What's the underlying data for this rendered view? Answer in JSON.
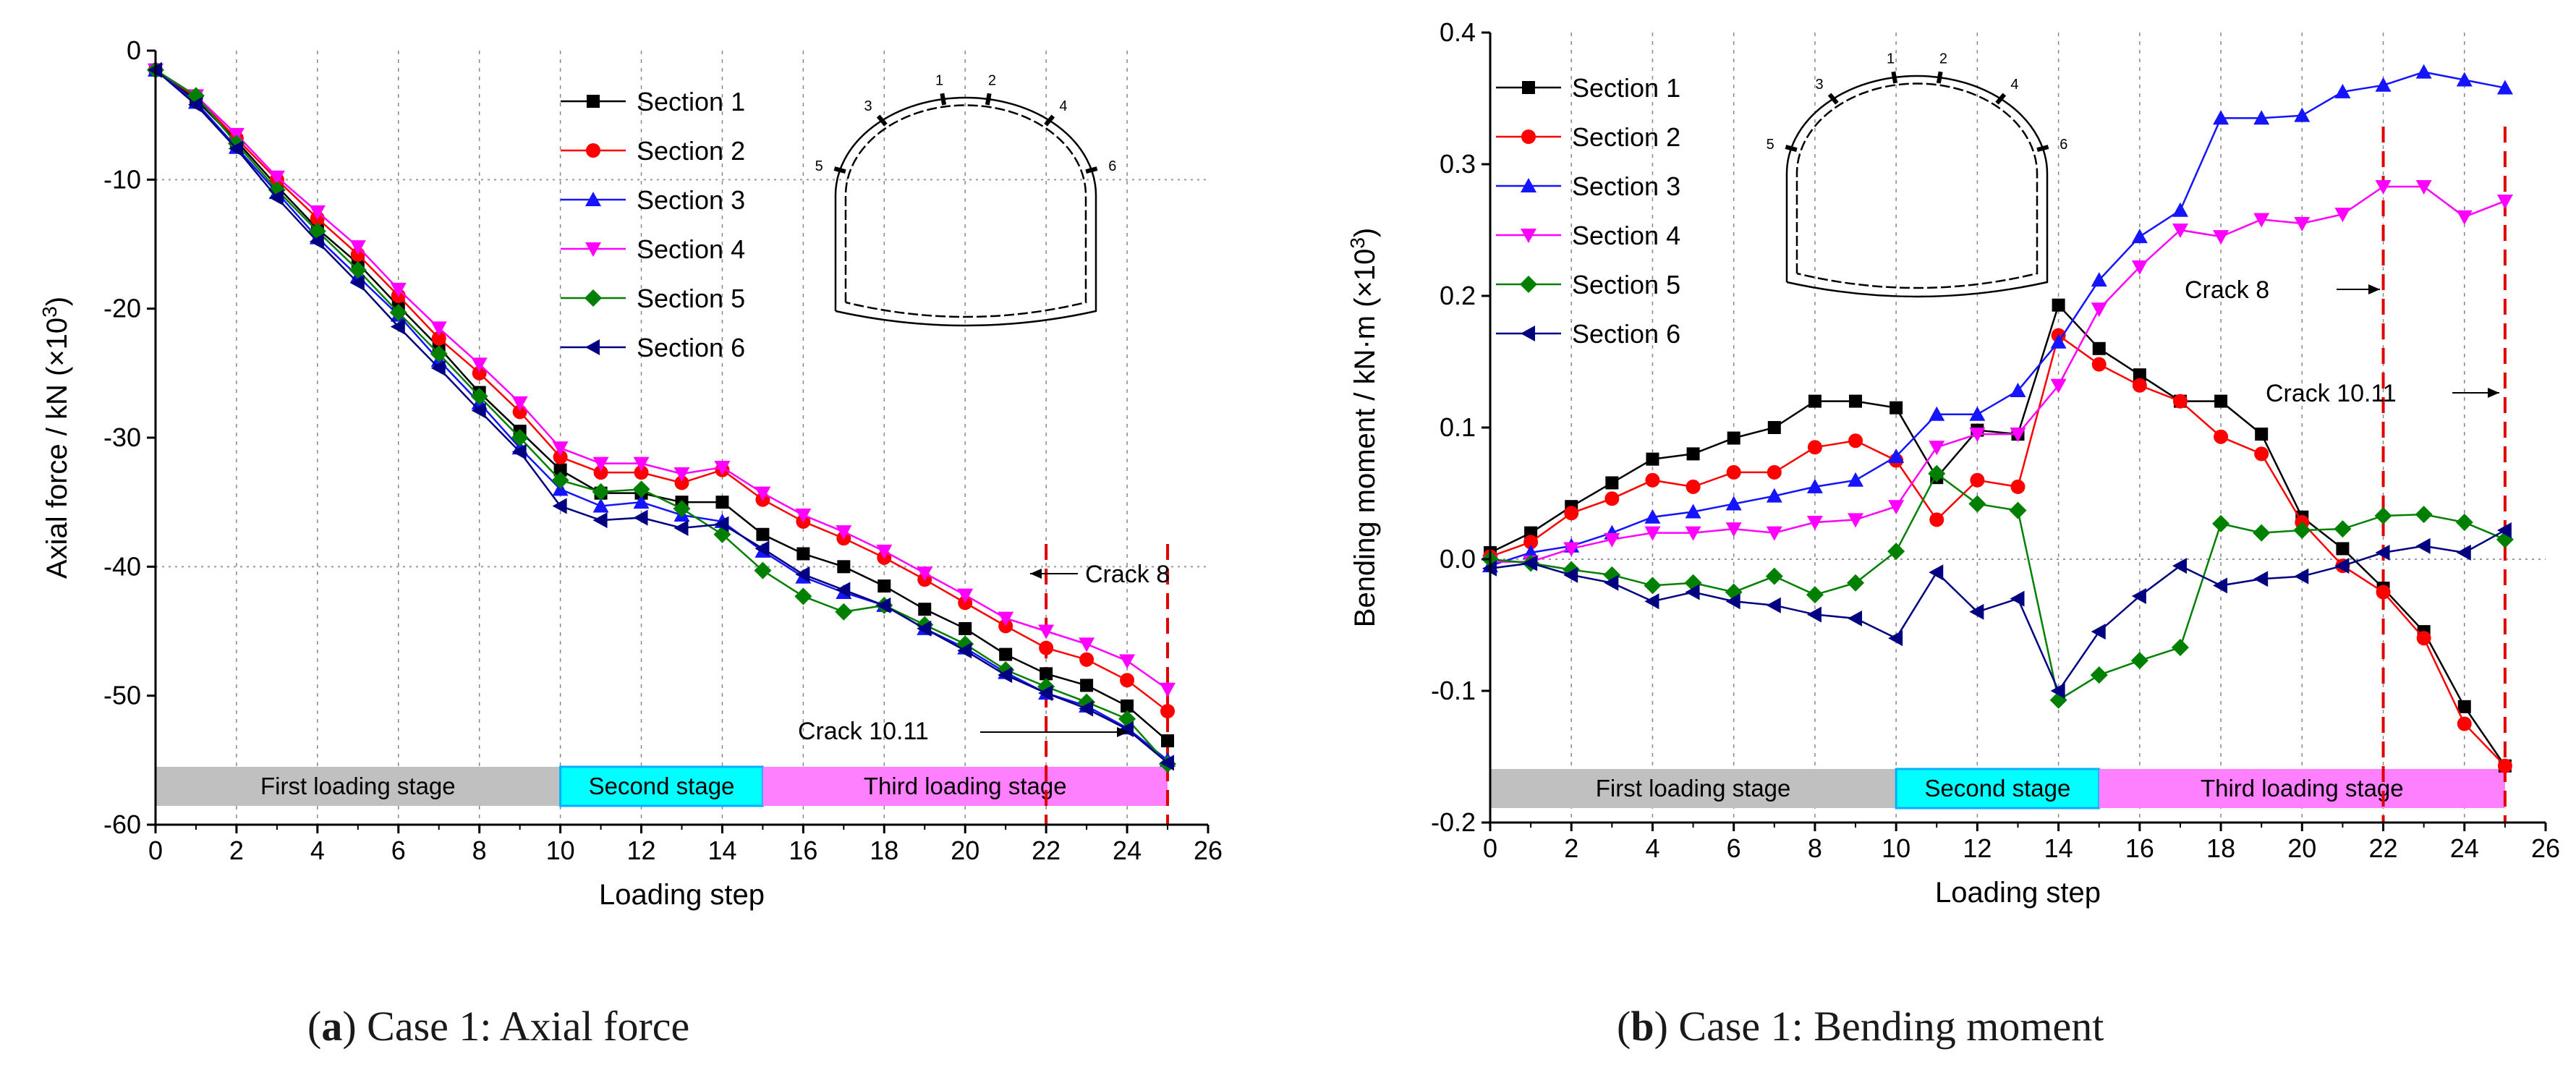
{
  "captions": {
    "a_prefix": "(",
    "a_letter": "a",
    "a_text": ") Case 1: Axial force",
    "b_prefix": "(",
    "b_letter": "b",
    "b_text": ") Case 1: Bending moment"
  },
  "chart_data": [
    {
      "type": "line",
      "title": "",
      "xlabel": "Loading step",
      "ylabel": "Axial force / kN (×10³)",
      "ylabel_base": "Axial force / kN (×10",
      "ylabel_sup": "3",
      "ylabel_end": ")",
      "xlim": [
        0,
        26
      ],
      "ylim": [
        -60,
        0
      ],
      "xticks": [
        0,
        2,
        4,
        6,
        8,
        10,
        12,
        14,
        16,
        18,
        20,
        22,
        24,
        26
      ],
      "yticks": [
        0,
        -10,
        -20,
        -30,
        -40,
        -50,
        -60
      ],
      "grid": "vertical dashed at even steps, horizontal dotted at -10 and -40",
      "legend": "top-center",
      "x": [
        0,
        1,
        2,
        3,
        4,
        5,
        6,
        7,
        8,
        9,
        10,
        11,
        12,
        13,
        14,
        15,
        16,
        17,
        18,
        19,
        20,
        21,
        22,
        23,
        24,
        25
      ],
      "series": [
        {
          "name": "Section 1",
          "color": "#000000",
          "marker": "square",
          "values": [
            -1.5,
            -3.8,
            -7.0,
            -10.5,
            -13.8,
            -16.5,
            -19.8,
            -23.0,
            -26.5,
            -29.5,
            -32.5,
            -34.3,
            -34.3,
            -35.0,
            -35.0,
            -37.5,
            -39.0,
            -40.0,
            -41.5,
            -43.3,
            -44.8,
            -46.8,
            -48.3,
            -49.2,
            -50.8,
            -53.5
          ]
        },
        {
          "name": "Section 2",
          "color": "#ff0000",
          "marker": "circle",
          "values": [
            -1.5,
            -3.6,
            -6.8,
            -10.0,
            -13.0,
            -15.8,
            -19.0,
            -22.3,
            -25.0,
            -28.0,
            -31.5,
            -32.7,
            -32.7,
            -33.5,
            -32.5,
            -34.8,
            -36.5,
            -37.8,
            -39.3,
            -41.0,
            -42.8,
            -44.6,
            -46.3,
            -47.2,
            -48.8,
            -51.2
          ]
        },
        {
          "name": "Section 3",
          "color": "#1414ff",
          "marker": "triangle-up",
          "values": [
            -1.5,
            -4.0,
            -7.5,
            -11.0,
            -14.5,
            -17.5,
            -20.5,
            -24.0,
            -27.3,
            -30.8,
            -34.0,
            -35.3,
            -35.0,
            -36.0,
            -36.5,
            -38.8,
            -40.8,
            -42.0,
            -43.0,
            -44.8,
            -46.3,
            -48.2,
            -49.8,
            -50.8,
            -52.5,
            -55.0
          ]
        },
        {
          "name": "Section 4",
          "color": "#ff00ff",
          "marker": "triangle-down",
          "values": [
            -1.5,
            -3.5,
            -6.5,
            -9.8,
            -12.5,
            -15.2,
            -18.5,
            -21.5,
            -24.3,
            -27.3,
            -30.8,
            -32.0,
            -32.0,
            -32.8,
            -32.3,
            -34.3,
            -36.0,
            -37.3,
            -38.8,
            -40.5,
            -42.2,
            -44.0,
            -45.0,
            -46.0,
            -47.3,
            -49.5
          ]
        },
        {
          "name": "Section 5",
          "color": "#008000",
          "marker": "diamond",
          "values": [
            -1.5,
            -3.5,
            -7.2,
            -10.8,
            -14.0,
            -17.0,
            -20.3,
            -23.5,
            -26.8,
            -30.0,
            -33.3,
            -34.2,
            -34.0,
            -35.5,
            -37.5,
            -40.3,
            -42.3,
            -43.5,
            -43.0,
            -44.5,
            -46.0,
            -48.0,
            -49.3,
            -50.5,
            -51.8,
            -55.3
          ]
        },
        {
          "name": "Section 6",
          "color": "#000080",
          "marker": "triangle-left",
          "values": [
            -1.5,
            -4.2,
            -7.6,
            -11.4,
            -14.8,
            -18.0,
            -21.4,
            -24.6,
            -27.9,
            -31.1,
            -35.3,
            -36.4,
            -36.2,
            -37.0,
            -36.7,
            -38.6,
            -40.6,
            -41.8,
            -43.0,
            -44.8,
            -46.5,
            -48.4,
            -49.8,
            -51.0,
            -52.6,
            -55.2
          ]
        }
      ],
      "crack_lines_x": [
        22,
        25
      ],
      "annotations": [
        "Crack 8",
        "Crack 10.11"
      ],
      "stages": [
        {
          "label": "First loading stage",
          "from": 0,
          "to": 10,
          "color": "#c0c0c0"
        },
        {
          "label": "Second stage",
          "from": 10,
          "to": 15,
          "color": "#00ffff"
        },
        {
          "label": "Third loading stage",
          "from": 15,
          "to": 25,
          "color": "#ff80ff"
        }
      ],
      "inset_numbers": [
        "1",
        "2",
        "3",
        "4",
        "5",
        "6"
      ]
    },
    {
      "type": "line",
      "title": "",
      "xlabel": "Loading step",
      "ylabel": "Bending moment / kN·m (×10³)",
      "ylabel_base": "Bending moment / kN·m (×10",
      "ylabel_sup": "3",
      "ylabel_end": ")",
      "xlim": [
        0,
        26
      ],
      "ylim": [
        -0.2,
        0.4
      ],
      "xticks": [
        0,
        2,
        4,
        6,
        8,
        10,
        12,
        14,
        16,
        18,
        20,
        22,
        24,
        26
      ],
      "yticks": [
        -0.2,
        -0.1,
        0.0,
        0.1,
        0.2,
        0.3,
        0.4
      ],
      "ytick_labels": [
        "-0.2",
        "-0.1",
        "0.0",
        "0.1",
        "0.2",
        "0.3",
        "0.4"
      ],
      "grid": "vertical dashed at even steps, horizontal dotted at 0.0",
      "legend": "top-left",
      "x": [
        0,
        1,
        2,
        3,
        4,
        5,
        6,
        7,
        8,
        9,
        10,
        11,
        12,
        13,
        14,
        15,
        16,
        17,
        18,
        19,
        20,
        21,
        22,
        23,
        24,
        25
      ],
      "series": [
        {
          "name": "Section 1",
          "color": "#000000",
          "marker": "square",
          "values": [
            0.005,
            0.02,
            0.04,
            0.058,
            0.076,
            0.08,
            0.092,
            0.1,
            0.12,
            0.12,
            0.115,
            0.062,
            0.098,
            0.095,
            0.193,
            0.16,
            0.14,
            0.12,
            0.12,
            0.095,
            0.032,
            0.008,
            -0.022,
            -0.055,
            -0.112,
            -0.157
          ]
        },
        {
          "name": "Section 2",
          "color": "#ff0000",
          "marker": "circle",
          "values": [
            0.002,
            0.013,
            0.035,
            0.046,
            0.06,
            0.055,
            0.066,
            0.066,
            0.085,
            0.09,
            0.075,
            0.03,
            0.06,
            0.055,
            0.17,
            0.148,
            0.132,
            0.12,
            0.093,
            0.08,
            0.028,
            -0.005,
            -0.025,
            -0.06,
            -0.125,
            -0.157
          ]
        },
        {
          "name": "Section 3",
          "color": "#1414ff",
          "marker": "triangle-up",
          "values": [
            -0.005,
            0.005,
            0.01,
            0.02,
            0.032,
            0.036,
            0.042,
            0.048,
            0.055,
            0.06,
            0.078,
            0.11,
            0.11,
            0.128,
            0.165,
            0.212,
            0.245,
            0.265,
            0.335,
            0.335,
            0.337,
            0.355,
            0.36,
            0.37,
            0.364,
            0.358
          ]
        },
        {
          "name": "Section 4",
          "color": "#ff00ff",
          "marker": "triangle-down",
          "values": [
            -0.002,
            -0.002,
            0.008,
            0.015,
            0.02,
            0.02,
            0.023,
            0.02,
            0.028,
            0.03,
            0.04,
            0.085,
            0.095,
            0.095,
            0.132,
            0.19,
            0.222,
            0.25,
            0.245,
            0.258,
            0.255,
            0.262,
            0.283,
            0.283,
            0.26,
            0.272
          ]
        },
        {
          "name": "Section 5",
          "color": "#008000",
          "marker": "diamond",
          "values": [
            0.0,
            -0.003,
            -0.008,
            -0.012,
            -0.02,
            -0.018,
            -0.025,
            -0.013,
            -0.027,
            -0.018,
            0.006,
            0.065,
            0.042,
            0.037,
            -0.107,
            -0.088,
            -0.077,
            -0.067,
            0.027,
            0.02,
            0.022,
            0.023,
            0.033,
            0.034,
            0.028,
            0.015
          ]
        },
        {
          "name": "Section 6",
          "color": "#000080",
          "marker": "triangle-left",
          "values": [
            -0.007,
            -0.003,
            -0.012,
            -0.018,
            -0.032,
            -0.025,
            -0.032,
            -0.035,
            -0.042,
            -0.045,
            -0.06,
            -0.01,
            -0.04,
            -0.03,
            -0.1,
            -0.055,
            -0.028,
            -0.005,
            -0.02,
            -0.015,
            -0.013,
            -0.005,
            0.005,
            0.01,
            0.005,
            0.022
          ]
        }
      ],
      "crack_lines_x": [
        22,
        25
      ],
      "annotations": [
        "Crack 8",
        "Crack 10.11"
      ],
      "stages": [
        {
          "label": "First loading stage",
          "from": 0,
          "to": 10,
          "color": "#c0c0c0"
        },
        {
          "label": "Second stage",
          "from": 10,
          "to": 15,
          "color": "#00ffff"
        },
        {
          "label": "Third loading stage",
          "from": 15,
          "to": 25,
          "color": "#ff80ff"
        }
      ],
      "inset_numbers": [
        "1",
        "2",
        "3",
        "4",
        "5",
        "6"
      ]
    }
  ]
}
